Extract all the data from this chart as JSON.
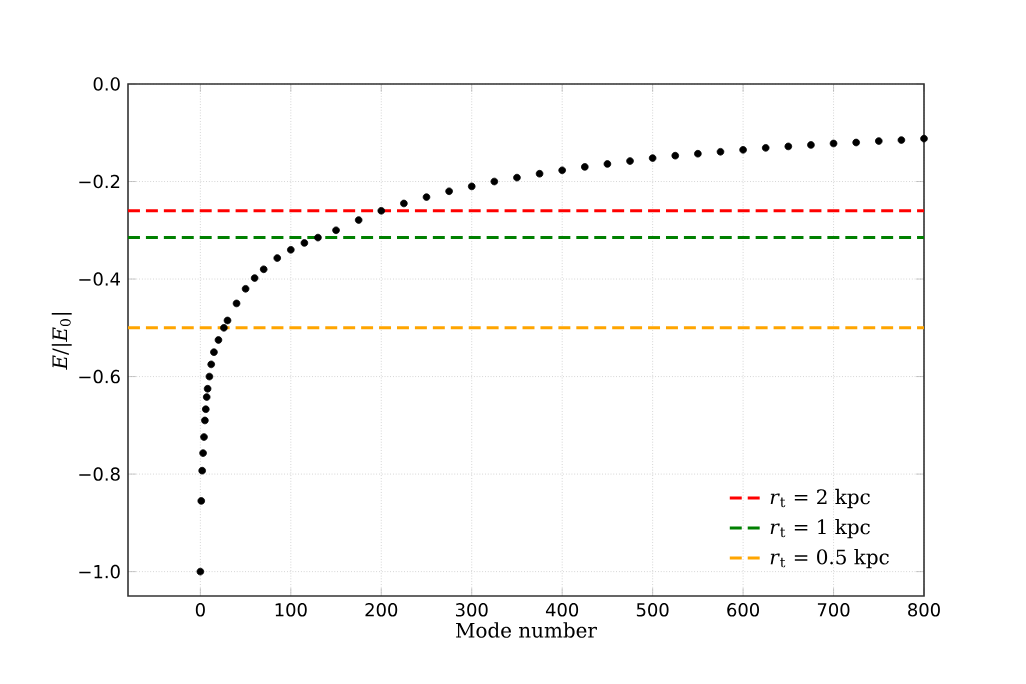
{
  "chart_data": {
    "type": "scatter",
    "xlabel": "Mode number",
    "ylabel": "*E*/|*E*$_{0}$|",
    "series": [
      {
        "color": "#000000",
        "marker": "circle",
        "x": [
          0,
          1,
          2,
          3,
          4,
          5,
          6,
          7,
          8,
          10,
          12,
          15,
          20,
          26,
          30,
          40,
          50,
          60,
          70,
          85,
          100,
          115,
          130,
          150,
          175,
          200,
          225,
          250,
          275,
          300,
          325,
          350,
          375,
          400,
          425,
          450,
          475,
          500,
          525,
          550,
          575,
          600,
          625,
          650,
          675,
          700,
          725,
          750,
          775,
          800
        ],
        "values": [
          -1.0,
          -0.855,
          -0.793,
          -0.757,
          -0.724,
          -0.69,
          -0.667,
          -0.642,
          -0.625,
          -0.6,
          -0.575,
          -0.55,
          -0.525,
          -0.5,
          -0.485,
          -0.45,
          -0.42,
          -0.398,
          -0.38,
          -0.357,
          -0.34,
          -0.326,
          -0.315,
          -0.3,
          -0.279,
          -0.26,
          -0.245,
          -0.232,
          -0.22,
          -0.21,
          -0.2,
          -0.192,
          -0.184,
          -0.177,
          -0.17,
          -0.164,
          -0.158,
          -0.152,
          -0.147,
          -0.143,
          -0.139,
          -0.135,
          -0.131,
          -0.128,
          -0.125,
          -0.122,
          -0.12,
          -0.117,
          -0.115,
          -0.112
        ]
      },
      {
        "type": "line",
        "name": "*r*$_{t}$ = 2 kpc",
        "color": "#ff0000",
        "line_style": "dashed",
        "marker": "none",
        "x": [
          -80,
          800
        ],
        "values": [
          -0.26,
          -0.26
        ]
      },
      {
        "type": "line",
        "name": "*r*$_{t}$ = 1 kpc",
        "color": "#008000",
        "line_style": "dashed",
        "marker": "none",
        "x": [
          -80,
          800
        ],
        "values": [
          -0.315,
          -0.315
        ]
      },
      {
        "type": "line",
        "name": "*r*$_{t}$ = 0.5 kpc",
        "color": "#ffa500",
        "line_style": "dashed",
        "marker": "none",
        "x": [
          -80,
          800
        ],
        "values": [
          -0.5,
          -0.5
        ]
      }
    ],
    "xlim": [
      -80,
      800
    ],
    "ylim": [
      -1.05,
      0.0
    ],
    "xticks": [
      0,
      100,
      200,
      300,
      400,
      500,
      600,
      700,
      800
    ],
    "yticks": [
      {
        "value": -1.0,
        "label": "−1.0"
      },
      {
        "value": -0.8,
        "label": "−0.8"
      },
      {
        "value": -0.6,
        "label": "−0.6"
      },
      {
        "value": -0.4,
        "label": "−0.4"
      },
      {
        "value": -0.2,
        "label": "−0.2"
      },
      {
        "value": 0.0,
        "label": "0.0"
      }
    ],
    "grid": true,
    "legend": "bottom right"
  }
}
